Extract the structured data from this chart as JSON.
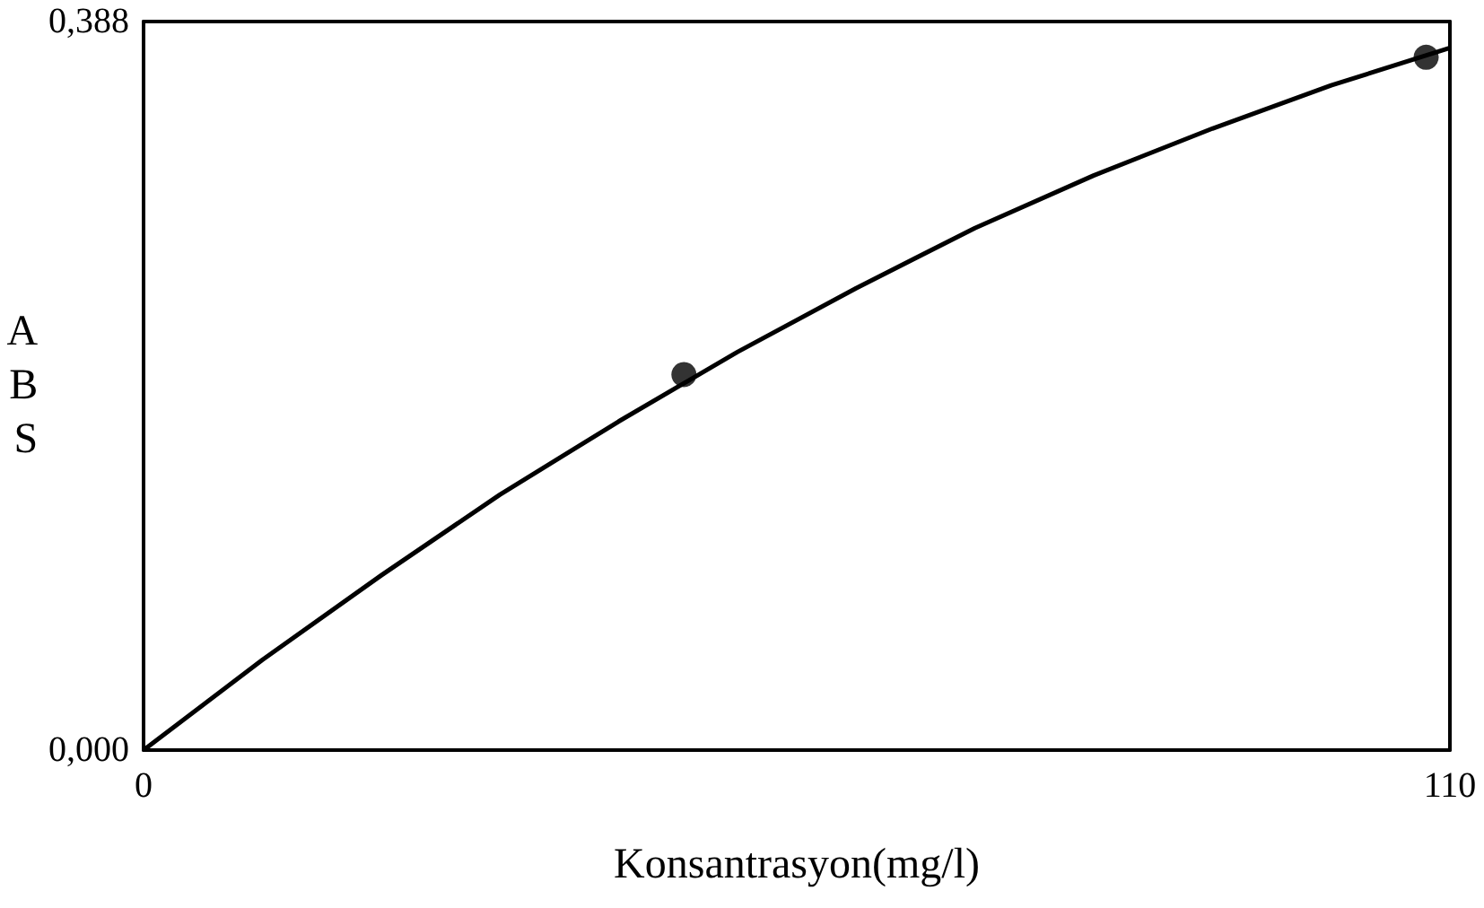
{
  "chart_data": {
    "type": "scatter",
    "xlabel": "Konsantrasyon(mg/l)",
    "ylabel": "ABS",
    "xlim": [
      0,
      110
    ],
    "ylim": [
      0,
      0.388
    ],
    "xticks": [
      0,
      110
    ],
    "yticks": [
      {
        "value": 0,
        "label": "0,000"
      },
      {
        "value": 0.388,
        "label": "0,388"
      }
    ],
    "grid": false,
    "marker": "circle",
    "series": [
      {
        "type": "scatter",
        "color": "#000000",
        "x": [
          45.5,
          108
        ],
        "values": [
          0.2,
          0.369
        ]
      },
      {
        "type": "line",
        "color": "#000000",
        "marker": "none",
        "line_style": "solid",
        "x": [
          0,
          10,
          20,
          30,
          40,
          50,
          60,
          70,
          80,
          90,
          100,
          110
        ],
        "values": [
          0,
          0.048,
          0.093,
          0.136,
          0.175,
          0.212,
          0.246,
          0.278,
          0.306,
          0.331,
          0.354,
          0.374
        ]
      }
    ]
  }
}
